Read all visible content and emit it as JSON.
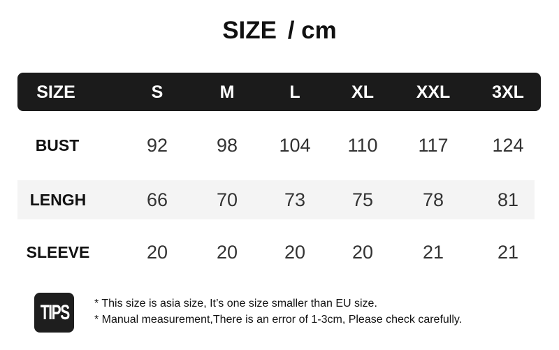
{
  "title": {
    "main": "SIZE",
    "unit": "/ cm"
  },
  "table": {
    "header": [
      "SIZE",
      "S",
      "M",
      "L",
      "XL",
      "XXL",
      "3XL"
    ],
    "rows": [
      {
        "label": "BUST",
        "values": [
          "92",
          "98",
          "104",
          "110",
          "117",
          "124"
        ]
      },
      {
        "label": "LENGH",
        "values": [
          "66",
          "70",
          "73",
          "75",
          "78",
          "81"
        ]
      },
      {
        "label": "SLEEVE",
        "values": [
          "20",
          "20",
          "20",
          "20",
          "21",
          "21"
        ]
      }
    ]
  },
  "tips": {
    "badge": "TIPS",
    "notes": [
      "* This size is asia size, It’s one size smaller than EU size.",
      "* Manual measurement,There is an error of 1-3cm, Please check carefully."
    ]
  },
  "colors": {
    "header_bg": "#1b1b1b",
    "band_bg": "#f4f4f4"
  }
}
